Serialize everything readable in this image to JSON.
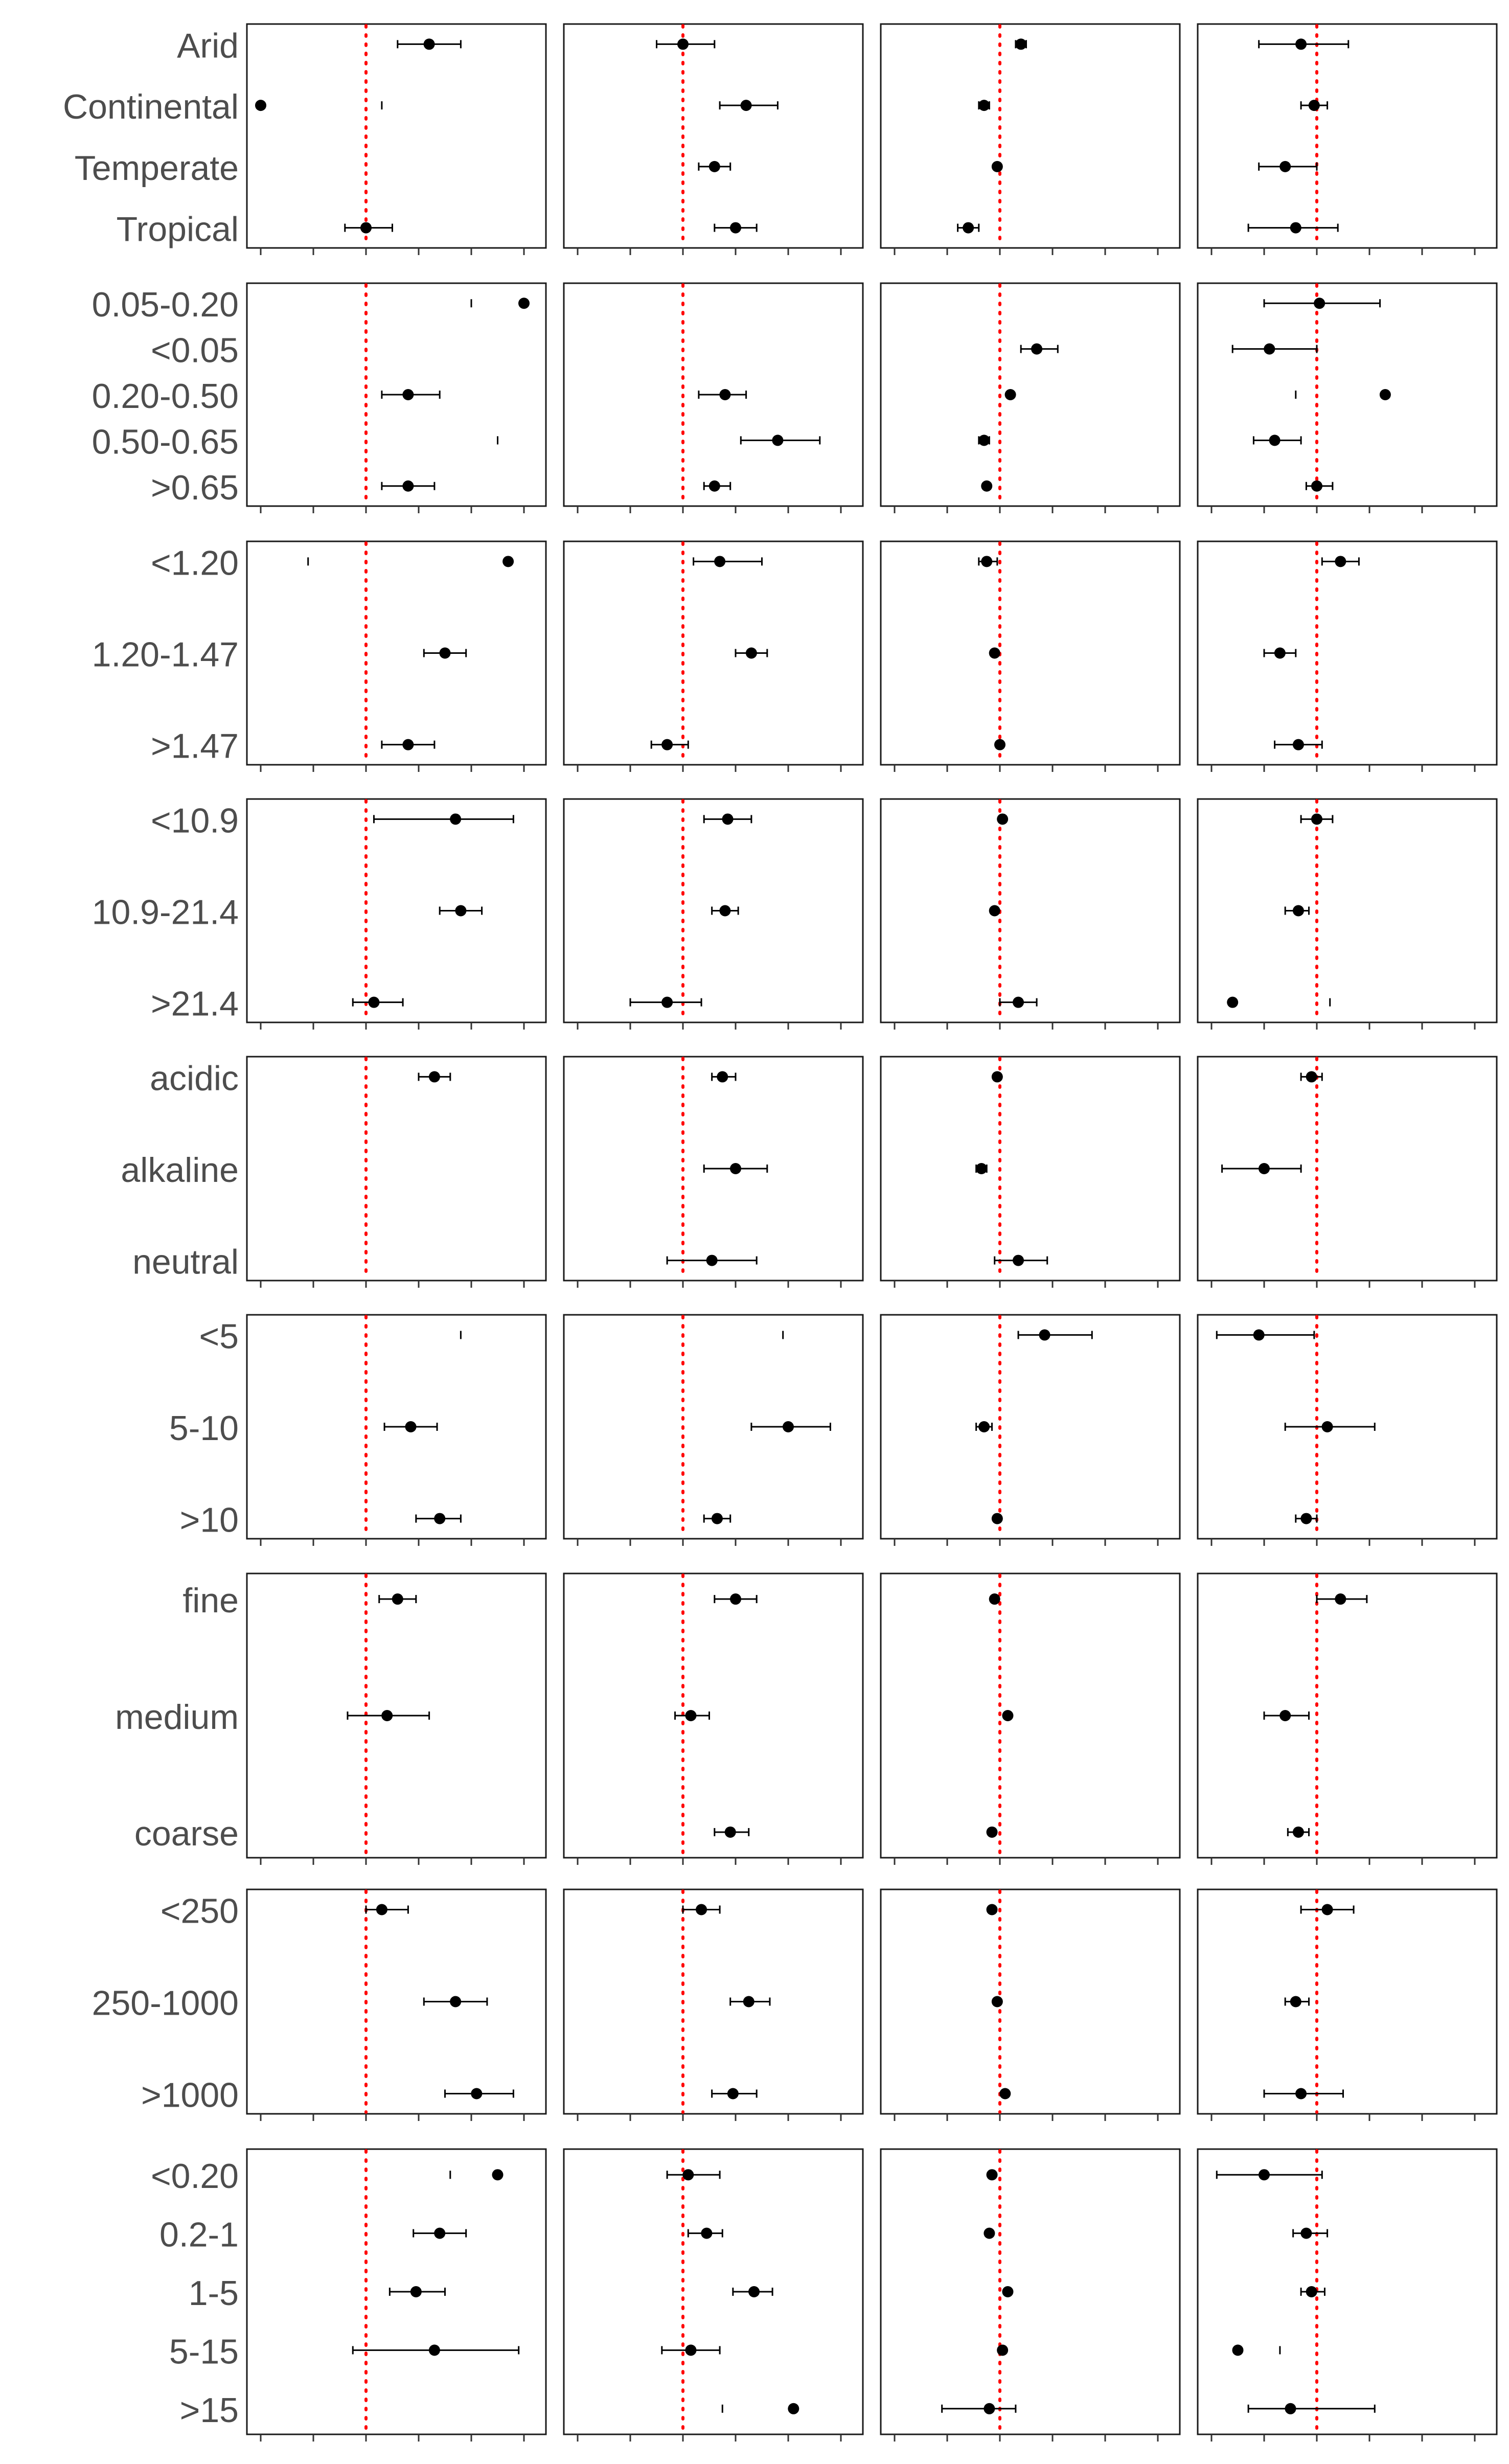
{
  "chart_data": {
    "type": "forest",
    "title": "",
    "xlabel": "",
    "ylabel": "",
    "grid": false,
    "legend": "none",
    "reference_line": {
      "value": 0,
      "style": "dotted",
      "color": "#ff0000"
    },
    "point_color": "#000000",
    "xlim": [
      -2,
      3
    ],
    "columns": 4,
    "panels": [
      {
        "categories": [
          "Arid",
          "Continental",
          "Temperate",
          "Tropical"
        ],
        "series": [
          {
            "estimates": [
              1.2,
              -2.0,
              null,
              0.0
            ],
            "lower": [
              0.6,
              null,
              null,
              -0.4
            ],
            "upper": [
              1.8,
              0.3,
              null,
              0.5
            ]
          },
          {
            "estimates": [
              0.0,
              1.2,
              0.6,
              1.0
            ],
            "lower": [
              -0.5,
              0.7,
              0.3,
              0.6
            ],
            "upper": [
              0.6,
              1.8,
              0.9,
              1.4
            ]
          },
          {
            "estimates": [
              0.4,
              -0.3,
              -0.05,
              -0.6
            ],
            "lower": [
              0.3,
              -0.4,
              -0.1,
              -0.8
            ],
            "upper": [
              0.5,
              -0.2,
              0.0,
              -0.4
            ]
          },
          {
            "estimates": [
              -0.3,
              -0.05,
              -0.6,
              -0.4
            ],
            "lower": [
              -1.1,
              -0.3,
              -1.1,
              -1.3
            ],
            "upper": [
              0.6,
              0.2,
              0.0,
              0.4
            ]
          }
        ]
      },
      {
        "categories": [
          "0.05-0.20",
          "<0.05",
          "0.20-0.50",
          "0.50-0.65",
          ">0.65"
        ],
        "series": [
          {
            "estimates": [
              3.0,
              null,
              0.8,
              null,
              0.8
            ],
            "lower": [
              2.0,
              null,
              0.3,
              2.5,
              0.3
            ],
            "upper": [
              null,
              null,
              1.4,
              null,
              1.3
            ]
          },
          {
            "estimates": [
              null,
              null,
              0.8,
              1.8,
              0.6
            ],
            "lower": [
              null,
              null,
              0.3,
              1.1,
              0.4
            ],
            "upper": [
              null,
              null,
              1.2,
              2.6,
              0.9
            ]
          },
          {
            "estimates": [
              null,
              0.7,
              0.2,
              -0.3,
              -0.25
            ],
            "lower": [
              null,
              0.4,
              null,
              -0.4,
              null
            ],
            "upper": [
              null,
              1.1,
              null,
              -0.2,
              null
            ]
          },
          {
            "estimates": [
              0.05,
              -0.9,
              1.3,
              -0.8,
              0.0
            ],
            "lower": [
              -1.0,
              -1.6,
              -0.4,
              -1.2,
              -0.2
            ],
            "upper": [
              1.2,
              0.0,
              null,
              -0.3,
              0.3
            ]
          }
        ]
      },
      {
        "categories": [
          "<1.20",
          "1.20-1.47",
          ">1.47"
        ],
        "series": [
          {
            "estimates": [
              2.7,
              1.5,
              0.8
            ],
            "lower": [
              -1.1,
              1.1,
              0.3
            ],
            "upper": [
              null,
              1.9,
              1.3
            ]
          },
          {
            "estimates": [
              0.7,
              1.3,
              -0.3
            ],
            "lower": [
              0.2,
              1.0,
              -0.6
            ],
            "upper": [
              1.5,
              1.6,
              0.1
            ]
          },
          {
            "estimates": [
              -0.25,
              -0.1,
              0.0
            ],
            "lower": [
              -0.4,
              null,
              null
            ],
            "upper": [
              -0.05,
              null,
              null
            ]
          },
          {
            "estimates": [
              0.45,
              -0.7,
              -0.35
            ],
            "lower": [
              0.1,
              -1.0,
              -0.8
            ],
            "upper": [
              0.8,
              -0.4,
              0.1
            ]
          }
        ]
      },
      {
        "categories": [
          "<10.9",
          "10.9-21.4",
          ">21.4"
        ],
        "series": [
          {
            "estimates": [
              1.7,
              1.8,
              0.15
            ],
            "lower": [
              0.15,
              1.4,
              -0.25
            ],
            "upper": [
              2.8,
              2.2,
              0.7
            ]
          },
          {
            "estimates": [
              0.85,
              0.8,
              -0.3
            ],
            "lower": [
              0.4,
              0.55,
              -1.0
            ],
            "upper": [
              1.3,
              1.05,
              0.35
            ]
          },
          {
            "estimates": [
              0.05,
              -0.1,
              0.35
            ],
            "lower": [
              null,
              null,
              0.0
            ],
            "upper": [
              null,
              null,
              0.7
            ]
          },
          {
            "estimates": [
              0.0,
              -0.35,
              -1.6
            ],
            "lower": [
              -0.3,
              -0.6,
              null
            ],
            "upper": [
              0.3,
              -0.15,
              0.25
            ]
          }
        ]
      },
      {
        "categories": [
          "acidic",
          "alkaline",
          "neutral"
        ],
        "series": [
          {
            "estimates": [
              1.3,
              null,
              null
            ],
            "lower": [
              1.0,
              null,
              null
            ],
            "upper": [
              1.6,
              null,
              null
            ]
          },
          {
            "estimates": [
              0.75,
              1.0,
              0.55
            ],
            "lower": [
              0.55,
              0.4,
              -0.3
            ],
            "upper": [
              1.0,
              1.6,
              1.4
            ]
          },
          {
            "estimates": [
              -0.05,
              -0.35,
              0.35
            ],
            "lower": [
              null,
              -0.45,
              -0.1
            ],
            "upper": [
              null,
              -0.25,
              0.9
            ]
          },
          {
            "estimates": [
              -0.1,
              -1.0,
              null
            ],
            "lower": [
              -0.3,
              -1.8,
              null
            ],
            "upper": [
              0.1,
              -0.3,
              null
            ]
          }
        ]
      },
      {
        "categories": [
          "<5",
          "5-10",
          ">10"
        ],
        "series": [
          {
            "estimates": [
              null,
              0.85,
              1.4
            ],
            "lower": [
              1.8,
              0.35,
              0.95
            ],
            "upper": [
              null,
              1.35,
              1.8
            ]
          },
          {
            "estimates": [
              null,
              2.0,
              0.65
            ],
            "lower": [
              1.9,
              1.3,
              0.4
            ],
            "upper": [
              null,
              2.8,
              0.9
            ]
          },
          {
            "estimates": [
              0.85,
              -0.3,
              -0.05
            ],
            "lower": [
              0.35,
              -0.45,
              null
            ],
            "upper": [
              1.75,
              -0.15,
              null
            ]
          },
          {
            "estimates": [
              -1.1,
              0.2,
              -0.2
            ],
            "lower": [
              -1.9,
              -0.6,
              -0.4
            ],
            "upper": [
              -0.05,
              1.1,
              0.0
            ]
          }
        ]
      },
      {
        "categories": [
          "fine",
          "medium",
          "coarse"
        ],
        "series": [
          {
            "estimates": [
              0.6,
              0.4,
              null
            ],
            "lower": [
              0.25,
              -0.35,
              null
            ],
            "upper": [
              0.95,
              1.2,
              null
            ]
          },
          {
            "estimates": [
              1.0,
              0.15,
              0.9
            ],
            "lower": [
              0.6,
              -0.15,
              0.6
            ],
            "upper": [
              1.4,
              0.5,
              1.25
            ]
          },
          {
            "estimates": [
              -0.1,
              0.15,
              -0.15
            ],
            "lower": [
              null,
              null,
              null
            ],
            "upper": [
              null,
              null,
              null
            ]
          },
          {
            "estimates": [
              0.45,
              -0.6,
              -0.35
            ],
            "lower": [
              0.0,
              -1.0,
              -0.55
            ],
            "upper": [
              0.95,
              -0.15,
              -0.15
            ]
          }
        ]
      },
      {
        "categories": [
          "<250",
          "250-1000",
          ">1000"
        ],
        "series": [
          {
            "estimates": [
              0.3,
              1.7,
              2.1
            ],
            "lower": [
              0.0,
              1.1,
              1.5
            ],
            "upper": [
              0.8,
              2.3,
              2.8
            ]
          },
          {
            "estimates": [
              0.35,
              1.25,
              0.95
            ],
            "lower": [
              0.0,
              0.9,
              0.55
            ],
            "upper": [
              0.7,
              1.65,
              1.4
            ]
          },
          {
            "estimates": [
              -0.15,
              -0.05,
              0.1
            ],
            "lower": [
              null,
              null,
              null
            ],
            "upper": [
              null,
              null,
              null
            ]
          },
          {
            "estimates": [
              0.2,
              -0.4,
              -0.3
            ],
            "lower": [
              -0.3,
              -0.6,
              -1.0
            ],
            "upper": [
              0.7,
              -0.15,
              0.5
            ]
          }
        ]
      },
      {
        "categories": [
          "<0.20",
          "0.2-1",
          "1-5",
          "5-15",
          ">15"
        ],
        "series": [
          {
            "estimates": [
              2.5,
              1.4,
              0.95,
              1.3,
              null
            ],
            "lower": [
              1.6,
              0.9,
              0.45,
              -0.25,
              null
            ],
            "upper": [
              null,
              1.9,
              1.5,
              2.9,
              null
            ]
          },
          {
            "estimates": [
              0.1,
              0.45,
              1.35,
              0.15,
              2.1
            ],
            "lower": [
              -0.3,
              0.1,
              0.95,
              -0.4,
              0.75
            ],
            "upper": [
              0.7,
              0.75,
              1.7,
              0.7,
              null
            ]
          },
          {
            "estimates": [
              -0.15,
              -0.2,
              0.15,
              0.05,
              -0.2
            ],
            "lower": [
              null,
              null,
              null,
              null,
              -1.1
            ],
            "upper": [
              null,
              null,
              null,
              null,
              0.3
            ]
          },
          {
            "estimates": [
              -1.0,
              -0.2,
              -0.1,
              -1.5,
              -0.5
            ],
            "lower": [
              -1.9,
              -0.45,
              -0.3,
              -0.7,
              -1.3
            ],
            "upper": [
              0.1,
              0.2,
              0.15,
              null,
              1.1
            ]
          }
        ]
      }
    ]
  }
}
